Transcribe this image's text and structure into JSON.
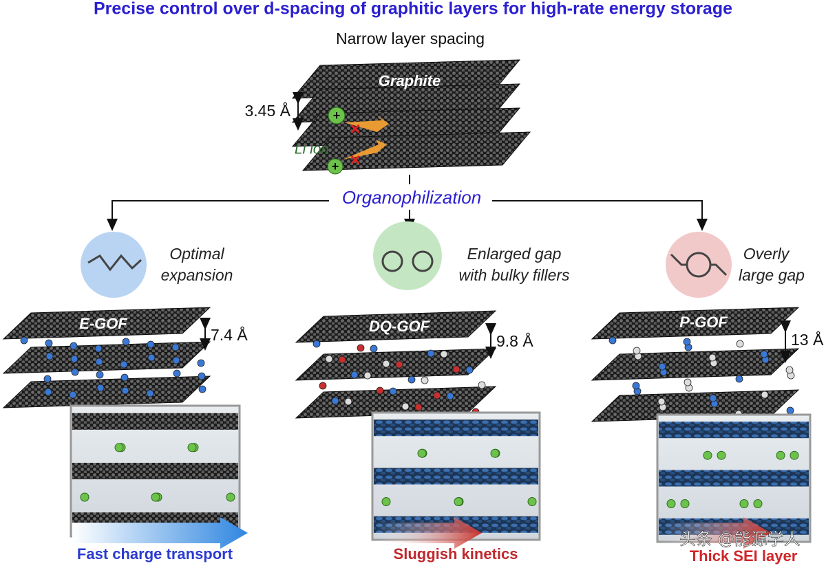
{
  "header": {
    "title": "Precise control over d-spacing of graphitic layers for high-rate energy storage"
  },
  "graphite": {
    "caption": "Narrow layer spacing",
    "label": "Graphite",
    "spacing": "3.45 Å",
    "ion_label": "Li ion"
  },
  "process_label": "Organophilization",
  "branches": [
    {
      "description": [
        "Optimal",
        "expansion"
      ],
      "label": "E-GOF",
      "spacing": "7.4 Å",
      "outcome": "Fast charge transport"
    },
    {
      "description": [
        "Enlarged gap",
        "with bulky fillers"
      ],
      "label": "DQ-GOF",
      "spacing": "9.8 Å",
      "outcome": "Sluggish kinetics"
    },
    {
      "description": [
        "Overly",
        "large gap"
      ],
      "label": "P-GOF",
      "spacing": "13 Å",
      "outcome": "Thick SEI layer"
    }
  ],
  "watermark": "头条 @能源学人"
}
